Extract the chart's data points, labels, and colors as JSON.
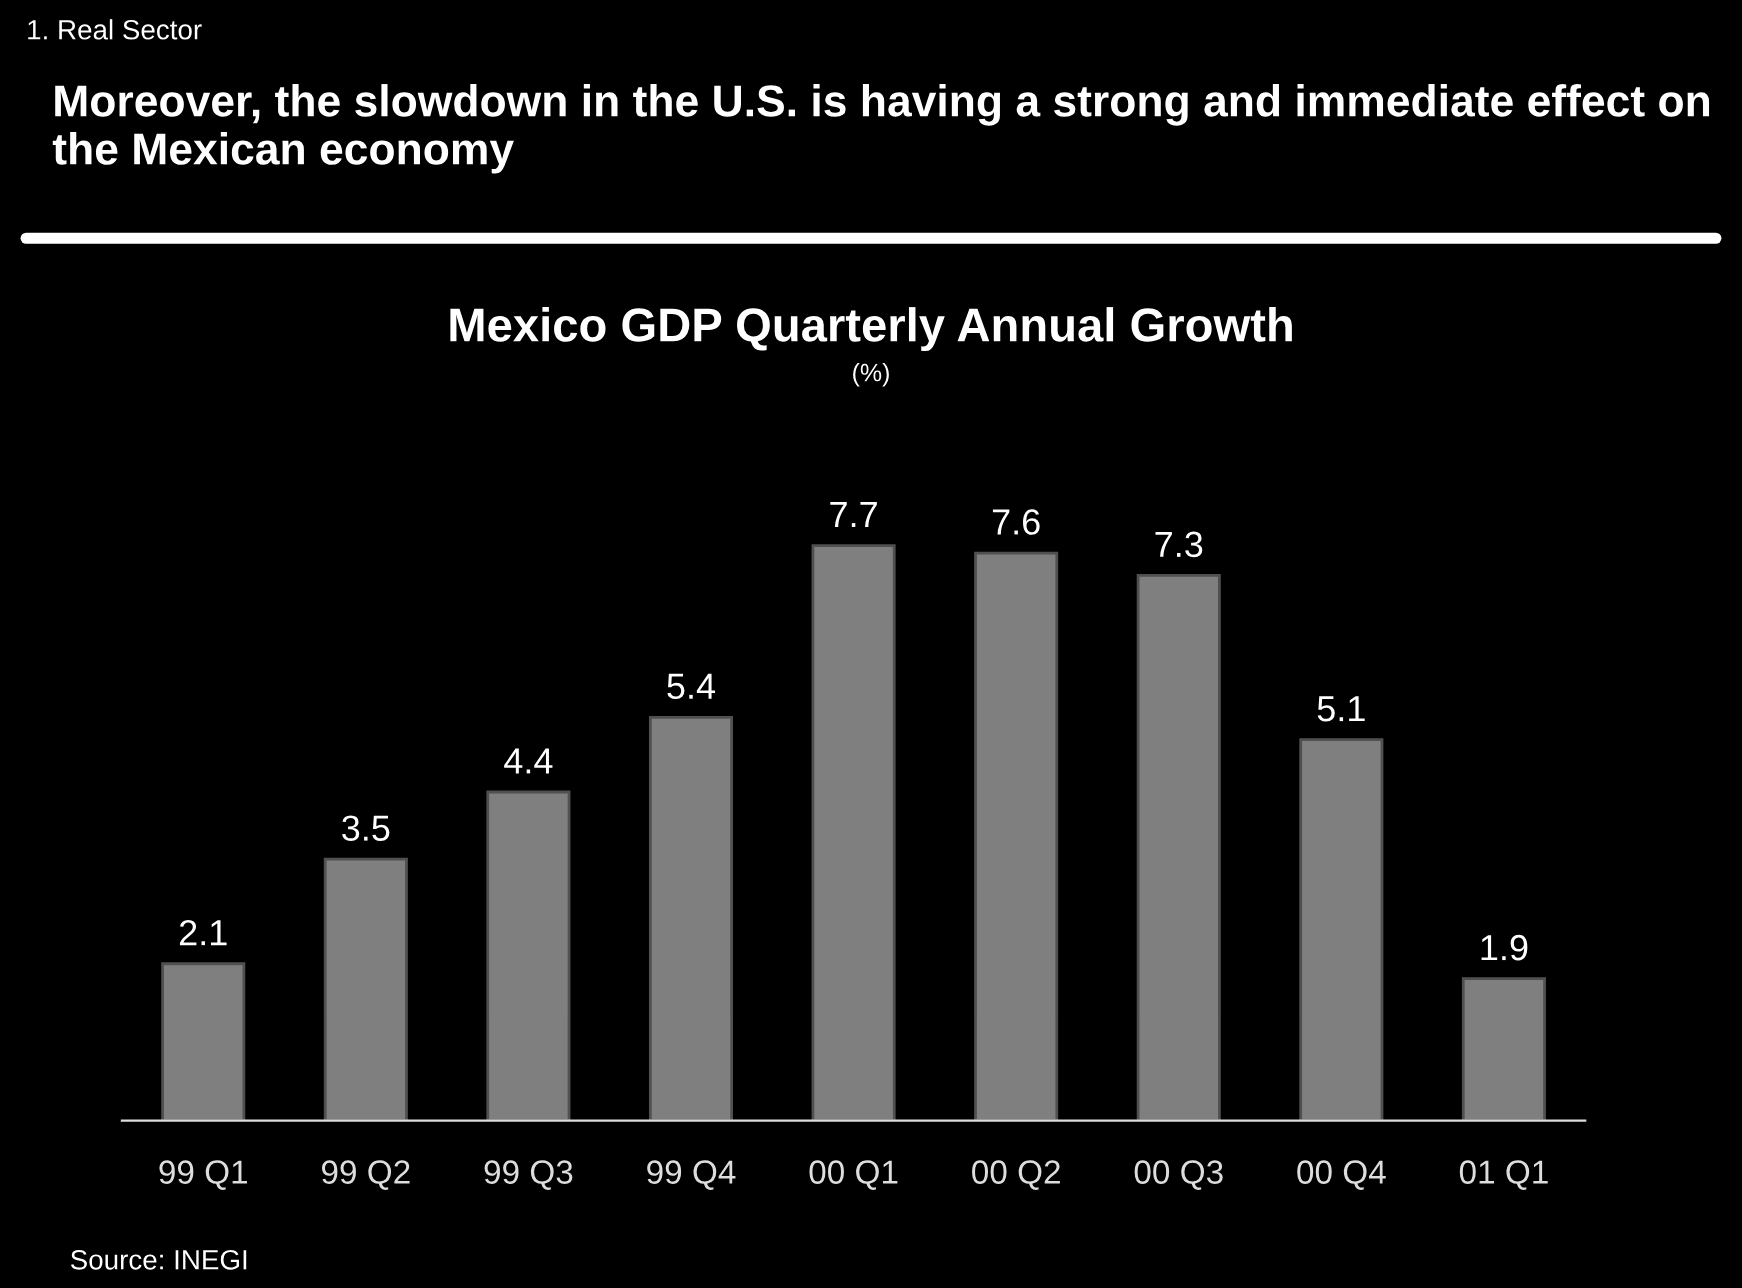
{
  "chart_data": {
    "type": "bar",
    "title": "Moreover, the slowdown in the U.S. is having a strong and immediate effect on the Mexican economy",
    "subtitle": "Mexico GDP Quarterly Annual Growth",
    "annotations": [
      "1. Real Sector",
      "(%)",
      "Source: INEGI"
    ],
    "categories": [
      "99 Q1",
      "99 Q2",
      "99 Q3",
      "99 Q4",
      "00 Q1",
      "00 Q2",
      "00 Q3",
      "00 Q4",
      "01 Q1"
    ],
    "values": [
      2.1,
      3.5,
      4.4,
      5.4,
      7.7,
      7.6,
      7.3,
      5.1,
      1.9
    ],
    "color": "#7f7f7f",
    "data_labels": true,
    "tick_labels": "x",
    "grid": false,
    "legend": false
  }
}
